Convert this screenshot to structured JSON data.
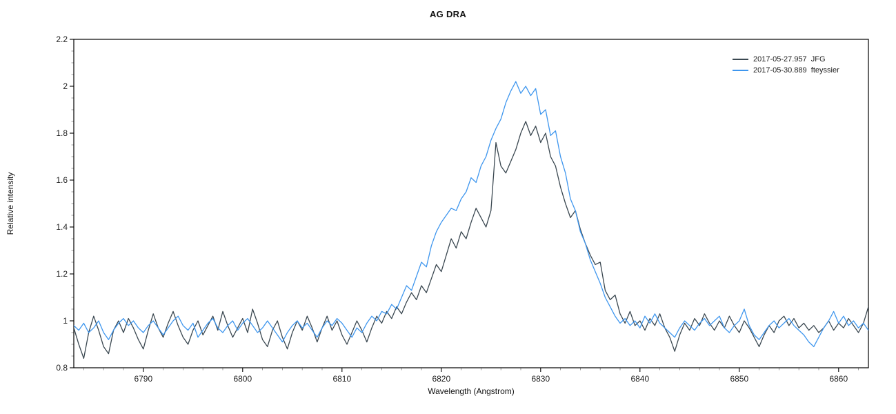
{
  "chart_data": {
    "type": "line",
    "title": "AG DRA",
    "xlabel": "Wavelength (Angstrom)",
    "ylabel": "Relative intensity",
    "xlim": [
      6783,
      6863
    ],
    "ylim": [
      0.8,
      2.2
    ],
    "grid": false,
    "legend_position": "top-right-inside",
    "axis_color": "#000000",
    "tick_label_color": "#222222",
    "x_major_ticks": [
      6790,
      6800,
      6810,
      6820,
      6830,
      6840,
      6850,
      6860
    ],
    "x_minor_step": 2,
    "y_major_ticks": [
      0.8,
      1.0,
      1.2,
      1.4,
      1.6,
      1.8,
      2.0,
      2.2
    ],
    "y_major_labels": [
      "0.8",
      "1",
      "1.2",
      "1.4",
      "1.6",
      "1.8",
      "2",
      "2.2"
    ],
    "y_minor_step": 0.05,
    "x_start": 6783.0,
    "x_step": 0.5,
    "series": [
      {
        "name": "2017-05-27.957  JFG",
        "color": "#3a4750",
        "values": [
          0.97,
          0.9,
          0.84,
          0.95,
          1.02,
          0.96,
          0.89,
          0.86,
          0.96,
          1.0,
          0.95,
          1.01,
          0.97,
          0.92,
          0.88,
          0.96,
          1.03,
          0.97,
          0.93,
          0.99,
          1.04,
          0.98,
          0.93,
          0.9,
          0.96,
          1.0,
          0.94,
          0.98,
          1.02,
          0.96,
          1.04,
          0.98,
          0.93,
          0.97,
          1.01,
          0.95,
          1.05,
          0.99,
          0.92,
          0.89,
          0.96,
          1.0,
          0.93,
          0.88,
          0.95,
          1.0,
          0.96,
          1.02,
          0.97,
          0.91,
          0.97,
          1.02,
          0.96,
          1.0,
          0.94,
          0.9,
          0.95,
          1.0,
          0.96,
          0.91,
          0.97,
          1.02,
          0.99,
          1.04,
          1.01,
          1.06,
          1.03,
          1.08,
          1.12,
          1.09,
          1.15,
          1.12,
          1.18,
          1.24,
          1.21,
          1.28,
          1.35,
          1.31,
          1.38,
          1.35,
          1.42,
          1.48,
          1.44,
          1.4,
          1.47,
          1.76,
          1.66,
          1.63,
          1.68,
          1.73,
          1.8,
          1.85,
          1.79,
          1.83,
          1.76,
          1.8,
          1.7,
          1.66,
          1.57,
          1.5,
          1.44,
          1.47,
          1.39,
          1.33,
          1.28,
          1.24,
          1.25,
          1.13,
          1.09,
          1.11,
          1.03,
          0.99,
          1.04,
          0.98,
          1.0,
          0.96,
          1.01,
          0.98,
          1.03,
          0.97,
          0.93,
          0.87,
          0.94,
          0.99,
          0.96,
          1.01,
          0.98,
          1.03,
          0.99,
          0.96,
          1.0,
          0.97,
          1.02,
          0.98,
          0.95,
          1.0,
          0.97,
          0.93,
          0.89,
          0.94,
          0.98,
          0.95,
          1.0,
          1.02,
          0.98,
          1.01,
          0.97,
          0.99,
          0.96,
          0.98,
          0.95,
          0.97,
          1.0,
          0.96,
          0.99,
          0.97,
          1.01,
          0.98,
          0.95,
          0.99,
          1.06
        ]
      },
      {
        "name": "2017-05-30.889  fteyssier",
        "color": "#3e96ee",
        "values": [
          0.98,
          0.96,
          0.99,
          0.95,
          0.97,
          1.0,
          0.95,
          0.92,
          0.96,
          0.99,
          1.01,
          0.98,
          1.0,
          0.97,
          0.95,
          0.98,
          1.0,
          0.97,
          0.94,
          0.97,
          1.0,
          1.02,
          0.98,
          0.96,
          0.99,
          0.93,
          0.96,
          0.99,
          1.01,
          0.97,
          0.95,
          0.98,
          1.0,
          0.96,
          0.99,
          1.01,
          0.98,
          0.95,
          0.97,
          1.0,
          0.97,
          0.94,
          0.91,
          0.95,
          0.98,
          1.0,
          0.97,
          0.99,
          0.96,
          0.93,
          0.97,
          1.0,
          0.98,
          1.01,
          0.99,
          0.96,
          0.93,
          0.97,
          0.95,
          0.99,
          1.02,
          1.0,
          1.04,
          1.03,
          1.07,
          1.05,
          1.1,
          1.15,
          1.13,
          1.19,
          1.25,
          1.23,
          1.32,
          1.38,
          1.42,
          1.45,
          1.48,
          1.47,
          1.52,
          1.55,
          1.61,
          1.59,
          1.66,
          1.7,
          1.77,
          1.82,
          1.86,
          1.93,
          1.98,
          2.02,
          1.97,
          2.0,
          1.96,
          1.99,
          1.88,
          1.9,
          1.79,
          1.81,
          1.7,
          1.63,
          1.52,
          1.47,
          1.38,
          1.33,
          1.26,
          1.21,
          1.16,
          1.1,
          1.06,
          1.02,
          0.99,
          1.01,
          0.98,
          1.0,
          0.97,
          1.02,
          0.99,
          1.03,
          0.99,
          0.97,
          0.95,
          0.93,
          0.97,
          1.0,
          0.98,
          0.96,
          0.99,
          1.01,
          0.98,
          1.0,
          1.02,
          0.97,
          0.95,
          0.98,
          1.0,
          1.05,
          0.98,
          0.94,
          0.92,
          0.95,
          0.98,
          1.0,
          0.97,
          0.99,
          1.01,
          0.98,
          0.96,
          0.94,
          0.91,
          0.89,
          0.93,
          0.97,
          1.0,
          1.04,
          0.99,
          1.02,
          0.98,
          1.0,
          0.97,
          0.99,
          0.96
        ]
      }
    ]
  }
}
